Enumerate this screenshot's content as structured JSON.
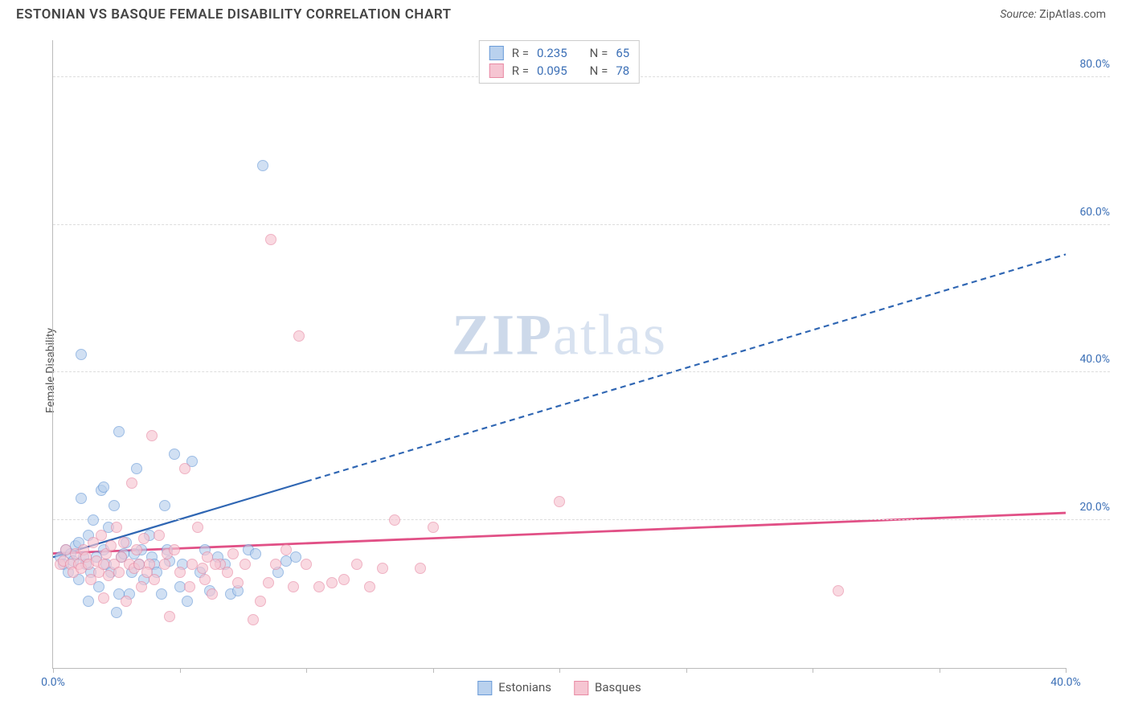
{
  "header": {
    "title": "ESTONIAN VS BASQUE FEMALE DISABILITY CORRELATION CHART",
    "source_prefix": "Source: ",
    "source_name": "ZipAtlas.com"
  },
  "ylabel": "Female Disability",
  "watermark": {
    "bold": "ZIP",
    "rest": "atlas"
  },
  "chart": {
    "type": "scatter",
    "xlim": [
      0,
      40
    ],
    "ylim": [
      0,
      85
    ],
    "x_ticks": [
      0,
      5,
      10,
      15,
      20,
      25,
      30,
      35,
      40
    ],
    "x_tick_labels": {
      "0": "0.0%",
      "40": "40.0%"
    },
    "y_ticks": [
      20,
      40,
      60,
      80
    ],
    "y_tick_labels": [
      "20.0%",
      "40.0%",
      "60.0%",
      "80.0%"
    ],
    "grid_color": "#dddddd",
    "axis_color": "#bbbbbb",
    "background_color": "#ffffff",
    "tick_label_color": "#3b6fb6",
    "axis_label_color": "#555555",
    "marker_radius": 7,
    "marker_border_width": 1.3,
    "series": [
      {
        "name": "Estonians",
        "fill": "#b9d1ee",
        "stroke": "#6a9bd8",
        "fill_opacity": 0.65,
        "R": "0.235",
        "N": "65",
        "trend": {
          "x1": 0,
          "y1": 15.0,
          "x2": 40,
          "y2": 56.0,
          "solid_until_x": 10,
          "color": "#2f66b3",
          "width": 2.2,
          "dash": "7,5"
        },
        "points": [
          [
            0.3,
            15
          ],
          [
            0.4,
            14
          ],
          [
            0.5,
            16
          ],
          [
            0.6,
            13
          ],
          [
            0.7,
            15.5
          ],
          [
            0.8,
            14.5
          ],
          [
            0.9,
            16.5
          ],
          [
            1.0,
            12
          ],
          [
            1.0,
            17
          ],
          [
            1.1,
            23
          ],
          [
            1.2,
            15
          ],
          [
            1.3,
            14
          ],
          [
            1.4,
            18
          ],
          [
            1.4,
            9
          ],
          [
            1.5,
            13
          ],
          [
            1.6,
            20
          ],
          [
            1.7,
            15
          ],
          [
            1.8,
            11
          ],
          [
            1.9,
            24
          ],
          [
            2.0,
            24.5
          ],
          [
            2.0,
            16
          ],
          [
            2.1,
            14
          ],
          [
            2.2,
            19
          ],
          [
            2.3,
            13
          ],
          [
            2.4,
            22
          ],
          [
            2.5,
            7.5
          ],
          [
            2.6,
            32
          ],
          [
            2.7,
            15
          ],
          [
            2.8,
            15.5
          ],
          [
            2.9,
            17
          ],
          [
            3.0,
            10
          ],
          [
            3.1,
            13
          ],
          [
            3.3,
            27
          ],
          [
            3.4,
            14
          ],
          [
            3.5,
            16
          ],
          [
            3.6,
            12
          ],
          [
            3.8,
            18
          ],
          [
            3.9,
            15
          ],
          [
            4.0,
            14
          ],
          [
            4.1,
            13
          ],
          [
            4.3,
            10
          ],
          [
            4.4,
            22
          ],
          [
            4.5,
            16
          ],
          [
            4.6,
            14.5
          ],
          [
            4.8,
            29
          ],
          [
            5.0,
            11
          ],
          [
            5.1,
            14
          ],
          [
            5.3,
            9
          ],
          [
            5.5,
            28
          ],
          [
            5.8,
            13
          ],
          [
            6.0,
            16
          ],
          [
            6.2,
            10.5
          ],
          [
            6.5,
            15
          ],
          [
            6.8,
            14
          ],
          [
            7.0,
            10
          ],
          [
            7.3,
            10.5
          ],
          [
            7.7,
            16
          ],
          [
            8.0,
            15.5
          ],
          [
            8.3,
            68
          ],
          [
            8.9,
            13
          ],
          [
            9.2,
            14.5
          ],
          [
            9.6,
            15
          ],
          [
            1.1,
            42.5
          ],
          [
            2.6,
            10
          ],
          [
            3.2,
            15.5
          ]
        ]
      },
      {
        "name": "Basques",
        "fill": "#f6c5d2",
        "stroke": "#e88aa4",
        "fill_opacity": 0.65,
        "R": "0.095",
        "N": "78",
        "trend": {
          "x1": 0,
          "y1": 15.5,
          "x2": 40,
          "y2": 21.0,
          "solid_until_x": 40,
          "color": "#e15086",
          "width": 2.8,
          "dash": ""
        },
        "points": [
          [
            0.3,
            14
          ],
          [
            0.4,
            14.5
          ],
          [
            0.5,
            16
          ],
          [
            0.7,
            14
          ],
          [
            0.8,
            13
          ],
          [
            0.9,
            15.5
          ],
          [
            1.0,
            14
          ],
          [
            1.1,
            13.5
          ],
          [
            1.2,
            16
          ],
          [
            1.3,
            15
          ],
          [
            1.4,
            14
          ],
          [
            1.5,
            12
          ],
          [
            1.6,
            17
          ],
          [
            1.7,
            14.5
          ],
          [
            1.8,
            13
          ],
          [
            1.9,
            18
          ],
          [
            2.0,
            14
          ],
          [
            2.1,
            15.5
          ],
          [
            2.2,
            12.5
          ],
          [
            2.3,
            16.5
          ],
          [
            2.4,
            14
          ],
          [
            2.5,
            19
          ],
          [
            2.6,
            13
          ],
          [
            2.7,
            15
          ],
          [
            2.8,
            17
          ],
          [
            2.9,
            9
          ],
          [
            3.0,
            14
          ],
          [
            3.1,
            25
          ],
          [
            3.2,
            13.5
          ],
          [
            3.3,
            16
          ],
          [
            3.4,
            14
          ],
          [
            3.5,
            11
          ],
          [
            3.6,
            17.5
          ],
          [
            3.8,
            14
          ],
          [
            3.9,
            31.5
          ],
          [
            4.0,
            12
          ],
          [
            4.2,
            18
          ],
          [
            4.4,
            14
          ],
          [
            4.5,
            15.5
          ],
          [
            4.6,
            7
          ],
          [
            4.8,
            16
          ],
          [
            5.0,
            13
          ],
          [
            5.2,
            27
          ],
          [
            5.4,
            11
          ],
          [
            5.5,
            14
          ],
          [
            5.7,
            19
          ],
          [
            5.9,
            13.5
          ],
          [
            6.0,
            12
          ],
          [
            6.1,
            15
          ],
          [
            6.3,
            10
          ],
          [
            6.6,
            14
          ],
          [
            6.9,
            13
          ],
          [
            7.1,
            15.5
          ],
          [
            7.3,
            11.5
          ],
          [
            7.6,
            14
          ],
          [
            7.9,
            6.5
          ],
          [
            8.2,
            9
          ],
          [
            8.5,
            11.5
          ],
          [
            8.6,
            58
          ],
          [
            8.8,
            14
          ],
          [
            9.2,
            16
          ],
          [
            9.5,
            11
          ],
          [
            9.7,
            45
          ],
          [
            10.0,
            14
          ],
          [
            10.5,
            11
          ],
          [
            11.0,
            11.5
          ],
          [
            11.5,
            12
          ],
          [
            12.0,
            14
          ],
          [
            12.5,
            11
          ],
          [
            13.0,
            13.5
          ],
          [
            13.5,
            20
          ],
          [
            14.5,
            13.5
          ],
          [
            15.0,
            19
          ],
          [
            20.0,
            22.5
          ],
          [
            31.0,
            10.5
          ],
          [
            6.4,
            14
          ],
          [
            2.0,
            9.5
          ],
          [
            3.7,
            13
          ]
        ]
      }
    ]
  },
  "legend_top": {
    "r_label": "R =",
    "n_label": "N ="
  },
  "legend_bottom": {
    "items": [
      "Estonians",
      "Basques"
    ]
  }
}
